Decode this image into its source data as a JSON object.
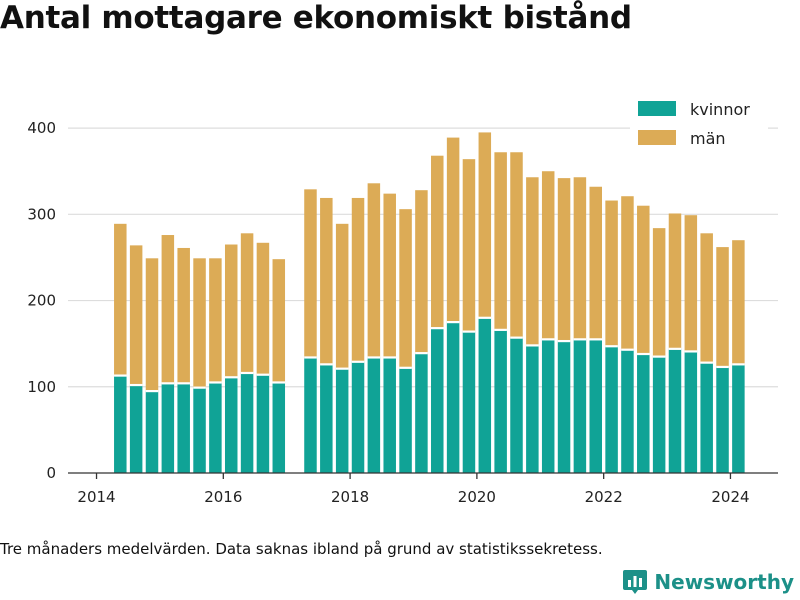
{
  "title": "Antal mottagare ekonomiskt bistånd",
  "footnote": "Tre månaders medelvärden. Data saknas ibland på grund av statistikssekretess.",
  "brand": {
    "name": "Newsworthy",
    "icon": "newsworthy-logo-icon",
    "color": "#1c9088"
  },
  "colors": {
    "kvinnor": "#10a396",
    "man": "#dcab56",
    "grid": "#dddddd",
    "axis": "#333333"
  },
  "chart_data": {
    "type": "bar",
    "stacked": true,
    "title": "Antal mottagare ekonomiskt bistånd",
    "xlabel": "",
    "ylabel": "",
    "ylim": [
      0,
      450
    ],
    "yticks": [
      0,
      100,
      200,
      300,
      400
    ],
    "xlim": [
      2013.55,
      2024.75
    ],
    "xticks": [
      2014,
      2016,
      2018,
      2020,
      2022,
      2024
    ],
    "grid": true,
    "legend": "top-right",
    "x": [
      2014.375,
      2014.625,
      2014.875,
      2015.125,
      2015.375,
      2015.625,
      2015.875,
      2016.125,
      2016.375,
      2016.625,
      2016.875,
      2017.375,
      2017.625,
      2017.875,
      2018.125,
      2018.375,
      2018.625,
      2018.875,
      2019.125,
      2019.375,
      2019.625,
      2019.875,
      2020.125,
      2020.375,
      2020.625,
      2020.875,
      2021.125,
      2021.375,
      2021.625,
      2021.875,
      2022.125,
      2022.375,
      2022.625,
      2022.875,
      2023.125,
      2023.375,
      2023.625,
      2023.875,
      2024.125
    ],
    "series": [
      {
        "name": "kvinnor",
        "color": "#10a396",
        "values": [
          113,
          102,
          95,
          104,
          104,
          99,
          105,
          111,
          116,
          114,
          105,
          134,
          126,
          121,
          129,
          134,
          134,
          122,
          139,
          168,
          175,
          164,
          180,
          166,
          157,
          148,
          155,
          153,
          155,
          155,
          147,
          143,
          138,
          135,
          144,
          141,
          128,
          123,
          126
        ]
      },
      {
        "name": "män",
        "color": "#dcab56",
        "values": [
          176,
          162,
          154,
          172,
          157,
          150,
          144,
          154,
          162,
          153,
          143,
          195,
          193,
          168,
          190,
          202,
          190,
          184,
          189,
          200,
          214,
          200,
          215,
          206,
          215,
          195,
          195,
          189,
          188,
          177,
          169,
          178,
          172,
          149,
          157,
          158,
          150,
          139,
          144
        ]
      }
    ]
  }
}
